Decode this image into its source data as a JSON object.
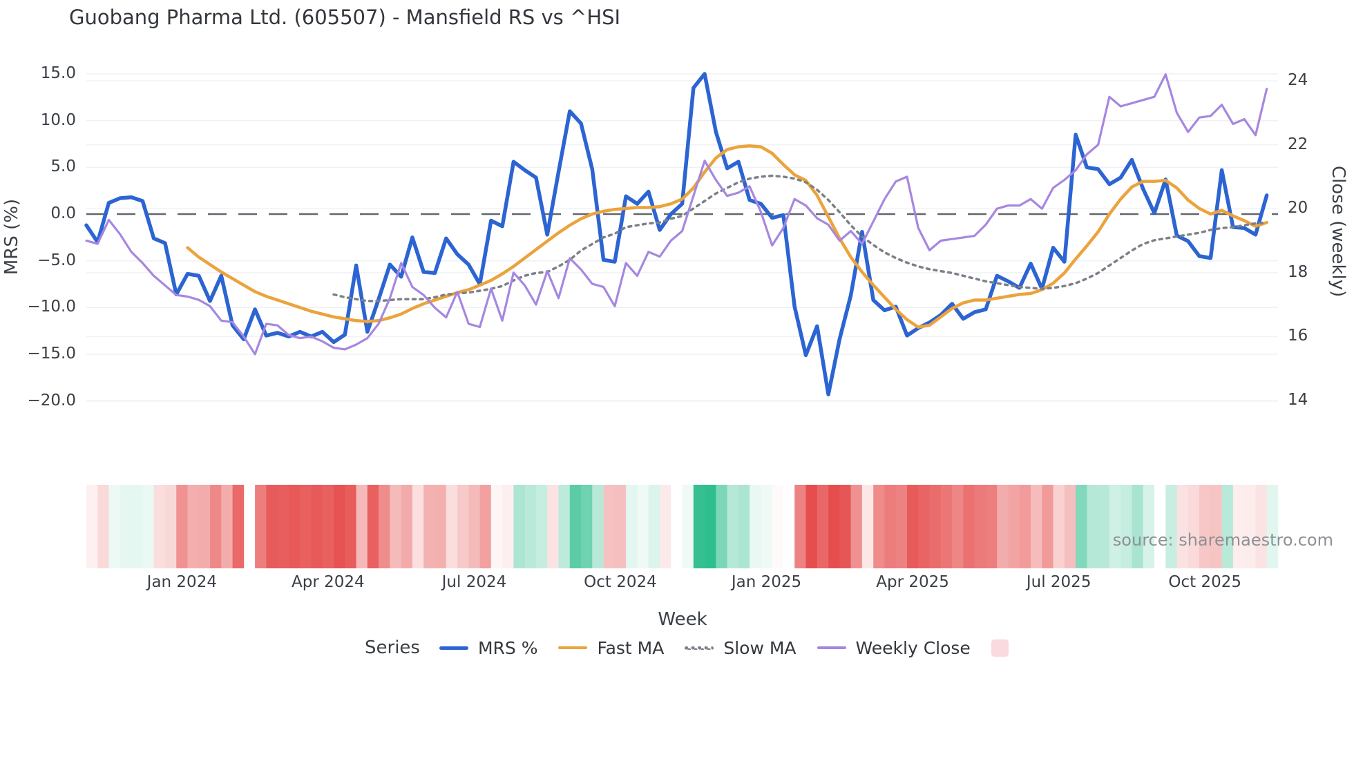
{
  "title": "Guobang Pharma Ltd. (605507) - Mansfield RS vs ^HSI",
  "source_note": "source: sharemaestro.com",
  "axes": {
    "left_label": "MRS (%)",
    "right_label": "Close (weekly)",
    "x_label": "Week",
    "left_ticks": [
      {
        "label": "15.0",
        "value": 15
      },
      {
        "label": "10.0",
        "value": 10
      },
      {
        "label": "5.0",
        "value": 5
      },
      {
        "label": "0.0",
        "value": 0
      },
      {
        "label": "−5.0",
        "value": -5
      },
      {
        "label": "−10.0",
        "value": -10
      },
      {
        "label": "−15.0",
        "value": -15
      },
      {
        "label": "−20.0",
        "value": -20
      }
    ],
    "right_ticks": [
      {
        "label": "24",
        "value": 24
      },
      {
        "label": "22",
        "value": 22
      },
      {
        "label": "20",
        "value": 20
      },
      {
        "label": "18",
        "value": 18
      },
      {
        "label": "16",
        "value": 16
      },
      {
        "label": "14",
        "value": 14
      }
    ],
    "x_ticks": [
      {
        "label": "Jan 2024",
        "week": 8
      },
      {
        "label": "Apr 2024",
        "week": 21
      },
      {
        "label": "Jul 2024",
        "week": 34
      },
      {
        "label": "Oct 2024",
        "week": 47
      },
      {
        "label": "Jan 2025",
        "week": 60
      },
      {
        "label": "Apr 2025",
        "week": 73
      },
      {
        "label": "Jul 2025",
        "week": 86
      },
      {
        "label": "Oct 2025",
        "week": 99
      }
    ]
  },
  "legend": {
    "title": "Series",
    "items": [
      {
        "label": "MRS %",
        "color": "#2c64d2",
        "style": "solid"
      },
      {
        "label": "Fast MA",
        "color": "#eba33c",
        "style": "solid"
      },
      {
        "label": "Slow MA",
        "color": "#7b8089",
        "style": "dotted"
      },
      {
        "label": "Weekly Close",
        "color": "#a687e0",
        "style": "solid"
      },
      {
        "label": "",
        "color": "#fadade",
        "style": "square"
      }
    ]
  },
  "chart_data": {
    "type": "line",
    "title": "Guobang Pharma Ltd. (605507) - Mansfield RS vs ^HSI",
    "xlabel": "Week",
    "ylabel_left": "MRS (%)",
    "ylabel_right": "Close (weekly)",
    "x_unit": "weekly index, week 0 = early Nov 2023",
    "n_weeks": 106,
    "ylim_left": [
      -20,
      15
    ],
    "ylim_right": [
      14,
      24
    ],
    "grid": true,
    "zero_line": {
      "value": 0,
      "axis": "left",
      "style": "dashed",
      "color": "#62666c"
    },
    "series": [
      {
        "name": "MRS %",
        "axis": "left",
        "color": "#2c64d2",
        "width": 5.5,
        "start_week": 0,
        "values": [
          -1.2,
          -3.0,
          1.2,
          1.7,
          1.8,
          1.4,
          -2.6,
          -3.1,
          -8.6,
          -6.4,
          -6.6,
          -9.3,
          -6.6,
          -11.9,
          -13.4,
          -10.2,
          -13.0,
          -12.7,
          -13.1,
          -12.6,
          -13.1,
          -12.6,
          -13.7,
          -12.9,
          -5.5,
          -12.6,
          -9.1,
          -5.4,
          -6.7,
          -2.5,
          -6.2,
          -6.3,
          -2.6,
          -4.3,
          -5.4,
          -7.5,
          -0.7,
          -1.3,
          5.6,
          4.7,
          3.9,
          -2.2,
          4.5,
          11.0,
          9.7,
          4.8,
          -4.9,
          -5.1,
          1.9,
          1.1,
          2.4,
          -1.7,
          0.0,
          1.1,
          13.5,
          15.0,
          8.8,
          4.9,
          5.6,
          1.5,
          1.1,
          -0.4,
          -0.1,
          -9.9,
          -15.1,
          -12.0,
          -19.3,
          -13.4,
          -8.7,
          -1.9,
          -9.2,
          -10.3,
          -9.9,
          -13.0,
          -12.2,
          -11.6,
          -10.8,
          -9.6,
          -11.2,
          -10.5,
          -10.2,
          -6.6,
          -7.2,
          -7.9,
          -5.3,
          -8.0,
          -3.6,
          -5.1,
          8.5,
          5.0,
          4.8,
          3.2,
          3.9,
          5.8,
          2.7,
          0.1,
          3.7,
          -2.3,
          -2.9,
          -4.5,
          -4.7,
          4.7,
          -1.4,
          -1.5,
          -2.2,
          2.0
        ]
      },
      {
        "name": "Fast MA",
        "axis": "left",
        "color": "#eba33c",
        "width": 4.5,
        "start_week": 9,
        "values": [
          -3.6,
          -4.6,
          -5.4,
          -6.2,
          -6.9,
          -7.6,
          -8.3,
          -8.8,
          -9.2,
          -9.6,
          -10.0,
          -10.4,
          -10.7,
          -11.0,
          -11.2,
          -11.4,
          -11.5,
          -11.4,
          -11.1,
          -10.7,
          -10.1,
          -9.6,
          -9.2,
          -8.8,
          -8.4,
          -8.1,
          -7.6,
          -7.1,
          -6.4,
          -5.6,
          -4.7,
          -3.8,
          -2.9,
          -2.0,
          -1.2,
          -0.5,
          0.0,
          0.3,
          0.5,
          0.6,
          0.7,
          0.7,
          0.8,
          1.1,
          1.6,
          2.8,
          4.5,
          6.0,
          6.9,
          7.2,
          7.3,
          7.2,
          6.5,
          5.3,
          4.2,
          3.6,
          2.0,
          -0.3,
          -2.6,
          -4.6,
          -6.2,
          -7.6,
          -8.9,
          -10.2,
          -11.3,
          -12.1,
          -11.9,
          -11.0,
          -10.1,
          -9.5,
          -9.2,
          -9.2,
          -9.0,
          -8.8,
          -8.6,
          -8.5,
          -8.1,
          -7.4,
          -6.3,
          -4.8,
          -3.4,
          -1.9,
          0.0,
          1.6,
          2.9,
          3.5,
          3.5,
          3.6,
          2.8,
          1.5,
          0.6,
          0.0,
          0.4,
          -0.2,
          -0.7,
          -1.3,
          -0.9
        ]
      },
      {
        "name": "Slow MA",
        "axis": "left",
        "color": "#7b8089",
        "width": 3.5,
        "dash": "4 6.5",
        "start_week": 22,
        "values": [
          -8.6,
          -8.9,
          -9.1,
          -9.3,
          -9.3,
          -9.2,
          -9.1,
          -9.1,
          -9.1,
          -8.9,
          -8.6,
          -8.5,
          -8.4,
          -8.2,
          -8.0,
          -7.7,
          -7.1,
          -6.6,
          -6.3,
          -6.2,
          -5.6,
          -4.9,
          -3.9,
          -3.2,
          -2.5,
          -2.1,
          -1.4,
          -1.2,
          -1.0,
          -0.9,
          -0.5,
          -0.2,
          0.6,
          1.4,
          2.2,
          2.8,
          3.4,
          3.8,
          4.0,
          4.1,
          4.0,
          3.8,
          3.4,
          2.6,
          1.5,
          0.2,
          -1.2,
          -2.4,
          -3.3,
          -4.1,
          -4.7,
          -5.2,
          -5.6,
          -5.9,
          -6.1,
          -6.3,
          -6.6,
          -6.9,
          -7.2,
          -7.4,
          -7.6,
          -7.8,
          -7.9,
          -8.0,
          -7.9,
          -7.7,
          -7.4,
          -6.9,
          -6.3,
          -5.5,
          -4.7,
          -3.9,
          -3.2,
          -2.8,
          -2.6,
          -2.4,
          -2.2,
          -2.0,
          -1.7,
          -1.5,
          -1.4,
          -1.2,
          -1.0,
          -0.9
        ]
      },
      {
        "name": "Weekly Close",
        "axis": "right",
        "color": "#a687e0",
        "width": 3.2,
        "start_week": 0,
        "values": [
          19.0,
          18.9,
          19.65,
          19.2,
          18.65,
          18.3,
          17.9,
          17.6,
          17.3,
          17.25,
          17.15,
          16.95,
          16.5,
          16.45,
          16.0,
          15.45,
          16.4,
          16.35,
          16.05,
          15.95,
          16.0,
          15.85,
          15.65,
          15.6,
          15.75,
          15.95,
          16.4,
          17.2,
          18.3,
          17.55,
          17.3,
          16.9,
          16.6,
          17.4,
          16.4,
          16.3,
          17.5,
          16.5,
          18.0,
          17.6,
          17.0,
          18.05,
          17.2,
          18.45,
          18.1,
          17.65,
          17.55,
          16.95,
          18.3,
          17.9,
          18.65,
          18.5,
          19.0,
          19.3,
          20.4,
          21.5,
          20.9,
          20.4,
          20.5,
          20.7,
          19.9,
          18.85,
          19.4,
          20.3,
          20.1,
          19.7,
          19.5,
          19.0,
          19.3,
          18.9,
          19.6,
          20.3,
          20.85,
          21.0,
          19.4,
          18.7,
          19.0,
          19.05,
          19.1,
          19.15,
          19.5,
          20.0,
          20.1,
          20.1,
          20.3,
          20.0,
          20.65,
          20.9,
          21.2,
          21.7,
          22.0,
          23.5,
          23.2,
          23.3,
          23.4,
          23.5,
          24.2,
          23.0,
          22.4,
          22.85,
          22.9,
          23.25,
          22.65,
          22.8,
          22.3,
          23.75
        ]
      }
    ],
    "heatmap": {
      "description": "weekly MRS heat strip below chart, red negative to green positive, white cell = missing week",
      "positive_color": "#2fbe8e",
      "negative_color": "#e64e4e",
      "scale_abs_max": 14,
      "values": [
        -1.2,
        -3.0,
        1.2,
        1.7,
        1.8,
        1.4,
        -2.6,
        -3.1,
        -8.6,
        -6.4,
        -6.6,
        -9.3,
        -6.6,
        -11.9,
        null,
        -10.2,
        -13.0,
        -12.7,
        -13.1,
        -12.6,
        -13.1,
        -12.6,
        -13.7,
        -12.9,
        -5.5,
        -12.6,
        -9.1,
        -5.4,
        -6.7,
        -2.5,
        -6.2,
        -6.3,
        -2.6,
        -4.3,
        -5.4,
        -7.5,
        -0.7,
        -1.3,
        5.6,
        4.7,
        3.9,
        -2.2,
        4.5,
        11.0,
        9.7,
        4.8,
        -4.9,
        -5.1,
        1.9,
        1.1,
        2.4,
        -1.7,
        0.0,
        1.1,
        13.5,
        15.0,
        8.8,
        4.9,
        5.6,
        1.5,
        1.1,
        -0.4,
        -0.1,
        -9.9,
        -15.1,
        -12.0,
        -19.3,
        -13.4,
        -8.7,
        -1.9,
        -9.2,
        -10.3,
        -9.9,
        -13.0,
        -12.2,
        -11.6,
        -10.8,
        -9.6,
        -11.2,
        -10.5,
        -10.2,
        -6.6,
        -7.2,
        -7.9,
        -5.3,
        -8.0,
        -3.6,
        -5.1,
        8.5,
        5.0,
        4.8,
        3.2,
        3.9,
        5.8,
        2.7,
        0.1,
        3.7,
        -2.3,
        -2.9,
        -4.5,
        -4.7,
        4.7,
        -1.4,
        -1.5,
        -2.2,
        2.0
      ]
    }
  }
}
